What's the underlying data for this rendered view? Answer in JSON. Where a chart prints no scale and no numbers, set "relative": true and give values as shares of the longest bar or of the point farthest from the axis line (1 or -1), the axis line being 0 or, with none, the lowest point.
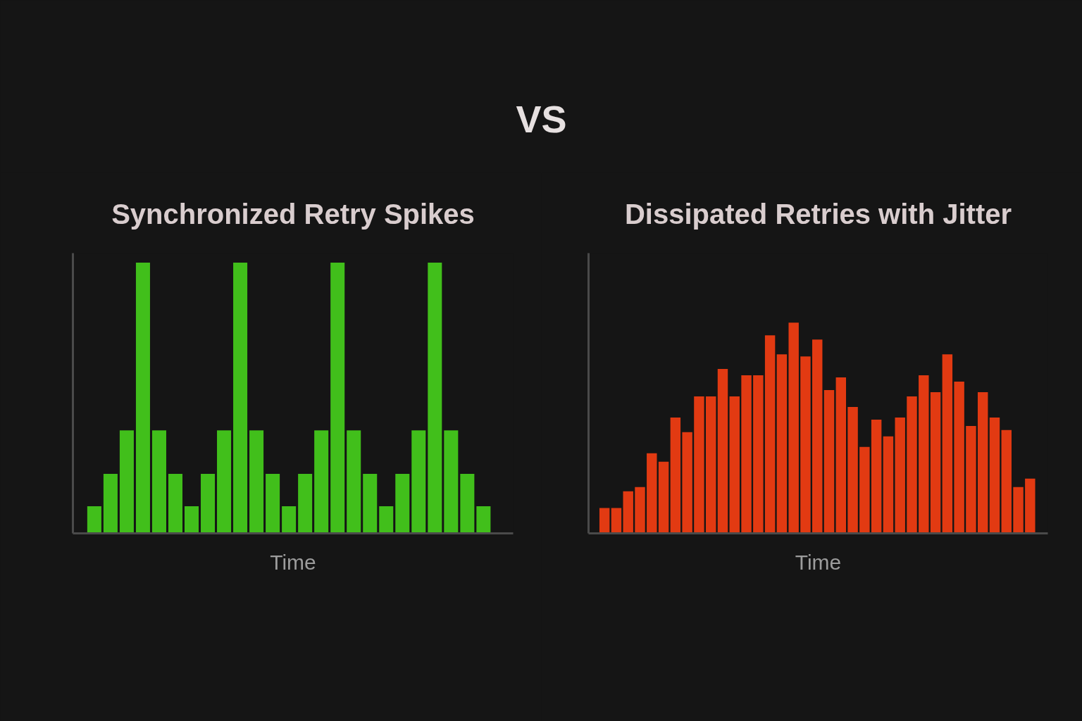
{
  "chart_data": [
    {
      "type": "other",
      "title": "VS"
    },
    {
      "type": "bar",
      "title": "Synchronized Retry Spikes",
      "xlabel": "Time",
      "relative": true,
      "color": "#41bf1b",
      "categories": [
        null,
        null,
        null,
        null,
        null,
        null,
        null,
        null,
        null,
        null,
        null,
        null,
        null,
        null,
        null,
        null,
        null,
        null,
        null,
        null,
        null,
        null,
        null,
        null,
        null
      ],
      "values": [
        0.1,
        0.22,
        0.38,
        1,
        0.38,
        0.22,
        0.1,
        0.22,
        0.38,
        1,
        0.38,
        0.22,
        0.1,
        0.22,
        0.38,
        1,
        0.38,
        0.22,
        0.1,
        0.22,
        0.38,
        1,
        0.38,
        0.22,
        0.1
      ]
    },
    {
      "type": "bar",
      "title": "Dissipated Retries with Jitter",
      "xlabel": "Time",
      "relative": true,
      "color": "#e23a12",
      "categories": [
        null,
        null,
        null,
        null,
        null,
        null,
        null,
        null,
        null,
        null,
        null,
        null,
        null,
        null,
        null,
        null,
        null,
        null,
        null,
        null,
        null,
        null,
        null,
        null,
        null,
        null,
        null,
        null,
        null,
        null,
        null,
        null,
        null,
        null,
        null,
        null,
        null
      ],
      "values": [
        0.12,
        0.12,
        0.2,
        0.22,
        0.38,
        0.34,
        0.55,
        0.48,
        0.65,
        0.65,
        0.78,
        0.65,
        0.75,
        0.75,
        0.94,
        0.85,
        1,
        0.84,
        0.92,
        0.68,
        0.74,
        0.6,
        0.41,
        0.54,
        0.46,
        0.55,
        0.65,
        0.75,
        0.67,
        0.85,
        0.72,
        0.51,
        0.67,
        0.55,
        0.49,
        0.22,
        0.26
      ]
    }
  ]
}
